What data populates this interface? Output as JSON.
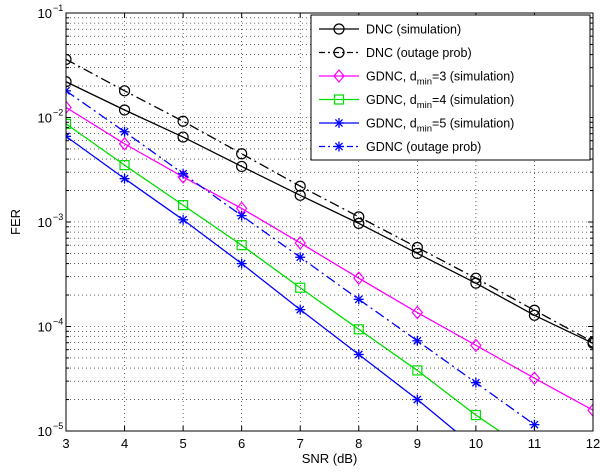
{
  "chart_data": {
    "type": "line",
    "xlabel": "SNR (dB)",
    "ylabel": "FER",
    "xlim": [
      3,
      12
    ],
    "ylim": [
      1e-05,
      0.1
    ],
    "yscale": "log",
    "grid": true,
    "legend_position": "top-right",
    "x_ticks": [
      "3",
      "4",
      "5",
      "6",
      "7",
      "8",
      "9",
      "10",
      "11",
      "12"
    ],
    "y_ticks": [
      {
        "base": "10",
        "exp": "−5",
        "value": 1e-05
      },
      {
        "base": "10",
        "exp": "−4",
        "value": 0.0001
      },
      {
        "base": "10",
        "exp": "−3",
        "value": 0.001
      },
      {
        "base": "10",
        "exp": "−2",
        "value": 0.01
      },
      {
        "base": "10",
        "exp": "−1",
        "value": 0.1
      }
    ],
    "series": [
      {
        "name": "DNC (simulation)",
        "color": "#000000",
        "dash": "solid",
        "marker": "circle",
        "x": [
          3,
          4,
          5,
          6,
          7,
          8,
          9,
          10,
          11,
          12
        ],
        "y": [
          0.022,
          0.0118,
          0.0065,
          0.0034,
          0.0018,
          0.00097,
          0.0005,
          0.00026,
          0.000128,
          6.9e-05
        ]
      },
      {
        "name": "DNC (outage prob)",
        "color": "#000000",
        "dash": "dashdot",
        "marker": "circle",
        "x": [
          3,
          4,
          5,
          6,
          7,
          8,
          9,
          10,
          11,
          12
        ],
        "y": [
          0.036,
          0.018,
          0.0092,
          0.0045,
          0.0022,
          0.00112,
          0.00057,
          0.00029,
          0.000143,
          7.1e-05
        ]
      },
      {
        "name": "GDNC, d_min=3 (simulation)",
        "label_main": "GDNC, d",
        "label_sub": "min",
        "label_tail": "=3 (simulation)",
        "color": "#ff00ff",
        "dash": "solid",
        "marker": "diamond",
        "x": [
          3,
          4,
          5,
          6,
          7,
          8,
          9,
          10,
          11,
          12
        ],
        "y": [
          0.0125,
          0.0056,
          0.0027,
          0.00135,
          0.00063,
          0.00029,
          0.000136,
          6.6e-05,
          3.2e-05,
          1.58e-05
        ]
      },
      {
        "name": "GDNC, d_min=4 (simulation)",
        "label_main": "GDNC, d",
        "label_sub": "min",
        "label_tail": "=4 (simulation)",
        "color": "#00dd00",
        "dash": "solid",
        "marker": "square",
        "x": [
          3,
          4,
          5,
          6,
          7,
          8,
          9,
          10,
          10.4
        ],
        "y": [
          0.0087,
          0.0035,
          0.00145,
          0.0006,
          0.000235,
          9.4e-05,
          3.8e-05,
          1.42e-05,
          1e-05
        ]
      },
      {
        "name": "GDNC, d_min=5 (simulation)",
        "label_main": "GDNC, d",
        "label_sub": "min",
        "label_tail": "=5 (simulation)",
        "color": "#0000ff",
        "dash": "solid",
        "marker": "star",
        "x": [
          3,
          4,
          5,
          6,
          7,
          8,
          9,
          9.65
        ],
        "y": [
          0.0066,
          0.0026,
          0.00105,
          0.0004,
          0.000145,
          5.4e-05,
          2e-05,
          1e-05
        ]
      },
      {
        "name": "GDNC (outage prob)",
        "color": "#0000ff",
        "dash": "dashdot",
        "marker": "star",
        "x": [
          3,
          4,
          5,
          6,
          7,
          8,
          9,
          10,
          11
        ],
        "y": [
          0.018,
          0.0073,
          0.0029,
          0.00115,
          0.00046,
          0.000182,
          7.3e-05,
          2.9e-05,
          1.15e-05
        ]
      }
    ]
  }
}
